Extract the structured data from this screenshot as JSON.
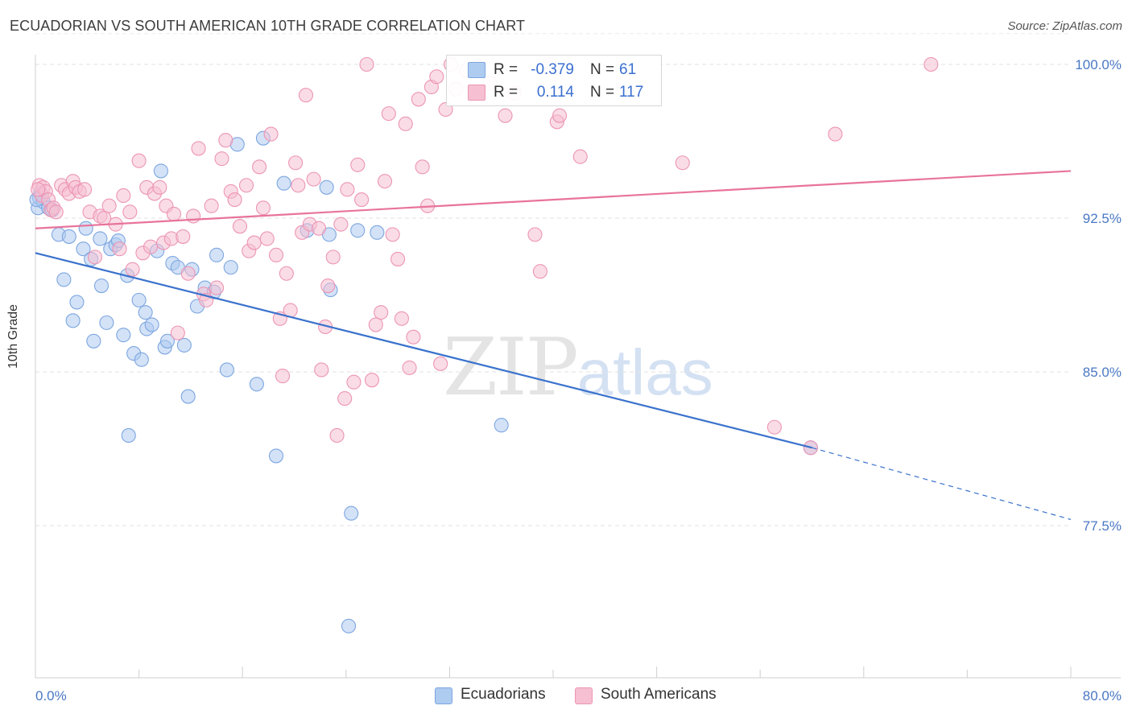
{
  "title": "ECUADORIAN VS SOUTH AMERICAN 10TH GRADE CORRELATION CHART",
  "source": "Source: ZipAtlas.com",
  "watermark": {
    "part1": "ZIP",
    "part2": "atlas"
  },
  "colors": {
    "blue": "#3a72cc",
    "pink": "#e8739b",
    "blue_fill": "#aecbf0",
    "pink_fill": "#f6bfd2"
  },
  "legend": {
    "rows": [
      {
        "r_label": "R =",
        "r_value": "-0.379",
        "n_label": "N =",
        "n_value": "61"
      },
      {
        "r_label": "R =",
        "r_value": "0.114",
        "n_label": "N =",
        "n_value": "117"
      }
    ]
  },
  "bottom_legend": [
    "Ecuadorians",
    "South Americans"
  ],
  "chart_data": {
    "type": "scatter",
    "title": "ECUADORIAN VS SOUTH AMERICAN 10TH GRADE CORRELATION CHART",
    "xlabel": "",
    "ylabel": "10th Grade",
    "xlim": [
      0,
      80
    ],
    "ylim": [
      71.0,
      101.5
    ],
    "x_tick_labels": [
      "0.0%",
      "80.0%"
    ],
    "y_ticks": [
      77.5,
      85.0,
      92.5,
      100.0
    ],
    "y_tick_labels": [
      "77.5%",
      "85.0%",
      "92.5%",
      "100.0%"
    ],
    "grid": true,
    "legend_position": "top-center",
    "series": [
      {
        "name": "Ecuadorians",
        "color": "#3a72cc",
        "r": -0.379,
        "n": 61,
        "trend": {
          "x0": 0,
          "y0": 90.8,
          "x1": 60.0,
          "y1": 81.3,
          "dashed_to_x": 80,
          "dashed_to_y": 77.8
        },
        "points": [
          [
            0.2,
            93.0
          ],
          [
            0.3,
            93.5
          ],
          [
            0.4,
            93.7
          ],
          [
            0.6,
            93.3
          ],
          [
            1.0,
            93.0
          ],
          [
            1.3,
            92.9
          ],
          [
            1.8,
            91.7
          ],
          [
            2.2,
            89.5
          ],
          [
            2.6,
            91.6
          ],
          [
            2.9,
            87.5
          ],
          [
            3.2,
            88.4
          ],
          [
            3.7,
            91.0
          ],
          [
            3.9,
            92.0
          ],
          [
            4.3,
            90.5
          ],
          [
            4.5,
            86.5
          ],
          [
            5.0,
            91.5
          ],
          [
            5.1,
            89.2
          ],
          [
            5.5,
            87.4
          ],
          [
            5.8,
            91.0
          ],
          [
            6.2,
            91.2
          ],
          [
            6.4,
            91.4
          ],
          [
            6.8,
            86.8
          ],
          [
            7.1,
            89.7
          ],
          [
            7.2,
            81.9
          ],
          [
            7.6,
            85.9
          ],
          [
            8.0,
            88.5
          ],
          [
            8.2,
            85.6
          ],
          [
            8.5,
            87.9
          ],
          [
            8.6,
            87.1
          ],
          [
            9.0,
            87.3
          ],
          [
            9.4,
            90.9
          ],
          [
            9.7,
            94.8
          ],
          [
            10.0,
            86.2
          ],
          [
            10.2,
            86.5
          ],
          [
            10.6,
            90.3
          ],
          [
            11.0,
            90.1
          ],
          [
            11.5,
            86.3
          ],
          [
            11.8,
            83.8
          ],
          [
            12.1,
            90.0
          ],
          [
            12.5,
            88.2
          ],
          [
            13.1,
            89.1
          ],
          [
            13.8,
            88.9
          ],
          [
            14.0,
            90.7
          ],
          [
            14.8,
            85.1
          ],
          [
            15.1,
            90.1
          ],
          [
            15.6,
            96.1
          ],
          [
            17.1,
            84.4
          ],
          [
            17.6,
            96.4
          ],
          [
            18.6,
            80.9
          ],
          [
            19.2,
            94.2
          ],
          [
            21.0,
            91.9
          ],
          [
            22.5,
            94.0
          ],
          [
            22.7,
            91.7
          ],
          [
            22.8,
            89.0
          ],
          [
            24.4,
            78.1
          ],
          [
            24.2,
            72.6
          ],
          [
            24.9,
            91.9
          ],
          [
            26.4,
            91.8
          ],
          [
            36.0,
            82.4
          ],
          [
            59.9,
            81.3
          ],
          [
            0.1,
            93.4
          ]
        ]
      },
      {
        "name": "South Americans",
        "color": "#e8739b",
        "r": 0.114,
        "n": 117,
        "trend": {
          "x0": 0,
          "y0": 92.0,
          "x1": 80,
          "y1": 94.8
        },
        "points": [
          [
            0.3,
            94.1
          ],
          [
            0.5,
            93.6
          ],
          [
            0.6,
            94.0
          ],
          [
            0.8,
            93.8
          ],
          [
            1.0,
            93.4
          ],
          [
            1.2,
            92.9
          ],
          [
            1.4,
            93.0
          ],
          [
            1.6,
            92.8
          ],
          [
            2.0,
            94.1
          ],
          [
            2.3,
            93.9
          ],
          [
            2.6,
            93.7
          ],
          [
            2.9,
            94.3
          ],
          [
            3.1,
            94.0
          ],
          [
            3.4,
            93.8
          ],
          [
            3.8,
            93.9
          ],
          [
            4.2,
            92.8
          ],
          [
            4.6,
            90.6
          ],
          [
            5.0,
            92.6
          ],
          [
            5.3,
            92.5
          ],
          [
            5.7,
            93.1
          ],
          [
            6.2,
            92.2
          ],
          [
            6.5,
            91.0
          ],
          [
            6.8,
            93.6
          ],
          [
            7.3,
            92.8
          ],
          [
            7.5,
            90.0
          ],
          [
            8.0,
            95.3
          ],
          [
            8.3,
            90.8
          ],
          [
            8.6,
            94.0
          ],
          [
            8.9,
            91.1
          ],
          [
            9.2,
            93.7
          ],
          [
            9.6,
            94.0
          ],
          [
            9.9,
            91.3
          ],
          [
            10.1,
            93.1
          ],
          [
            10.5,
            91.5
          ],
          [
            10.7,
            92.7
          ],
          [
            11.0,
            86.9
          ],
          [
            11.4,
            91.6
          ],
          [
            11.8,
            89.8
          ],
          [
            12.2,
            92.6
          ],
          [
            12.6,
            95.9
          ],
          [
            13.0,
            88.8
          ],
          [
            13.2,
            88.5
          ],
          [
            13.6,
            93.1
          ],
          [
            14.0,
            89.1
          ],
          [
            14.4,
            95.4
          ],
          [
            14.7,
            96.3
          ],
          [
            15.1,
            93.8
          ],
          [
            15.4,
            93.4
          ],
          [
            15.8,
            92.1
          ],
          [
            16.3,
            94.1
          ],
          [
            16.5,
            90.9
          ],
          [
            16.9,
            91.3
          ],
          [
            17.3,
            95.0
          ],
          [
            17.6,
            93.0
          ],
          [
            17.9,
            91.5
          ],
          [
            18.2,
            96.6
          ],
          [
            18.6,
            90.7
          ],
          [
            18.9,
            87.6
          ],
          [
            19.1,
            84.8
          ],
          [
            19.4,
            89.8
          ],
          [
            19.7,
            88.0
          ],
          [
            20.1,
            95.2
          ],
          [
            20.3,
            94.1
          ],
          [
            20.6,
            91.8
          ],
          [
            20.9,
            98.5
          ],
          [
            21.2,
            92.2
          ],
          [
            21.5,
            94.4
          ],
          [
            21.9,
            92.0
          ],
          [
            22.1,
            85.1
          ],
          [
            22.4,
            87.2
          ],
          [
            22.6,
            89.2
          ],
          [
            23.0,
            90.6
          ],
          [
            23.3,
            81.9
          ],
          [
            23.6,
            92.2
          ],
          [
            23.9,
            83.7
          ],
          [
            24.1,
            93.9
          ],
          [
            24.6,
            84.5
          ],
          [
            24.9,
            95.1
          ],
          [
            25.2,
            93.4
          ],
          [
            25.6,
            100.0
          ],
          [
            26.0,
            84.6
          ],
          [
            26.3,
            87.3
          ],
          [
            26.7,
            87.9
          ],
          [
            27.0,
            94.3
          ],
          [
            27.3,
            97.6
          ],
          [
            27.6,
            91.7
          ],
          [
            28.0,
            90.5
          ],
          [
            28.3,
            87.6
          ],
          [
            28.6,
            97.1
          ],
          [
            28.9,
            85.2
          ],
          [
            29.2,
            86.7
          ],
          [
            29.6,
            98.3
          ],
          [
            29.9,
            95.0
          ],
          [
            30.3,
            93.1
          ],
          [
            30.6,
            98.9
          ],
          [
            31.0,
            99.4
          ],
          [
            31.3,
            85.4
          ],
          [
            31.7,
            97.8
          ],
          [
            32.1,
            100.0
          ],
          [
            32.5,
            98.8
          ],
          [
            33.3,
            99.7
          ],
          [
            34.2,
            99.9
          ],
          [
            35.1,
            99.1
          ],
          [
            36.3,
            97.5
          ],
          [
            37.0,
            98.6
          ],
          [
            38.6,
            91.7
          ],
          [
            39.0,
            89.9
          ],
          [
            39.7,
            100.0
          ],
          [
            40.3,
            97.2
          ],
          [
            40.5,
            97.5
          ],
          [
            42.1,
            95.5
          ],
          [
            50.0,
            95.2
          ],
          [
            57.1,
            82.3
          ],
          [
            59.9,
            81.3
          ],
          [
            61.8,
            96.6
          ],
          [
            69.2,
            100.0
          ],
          [
            0.2,
            93.9
          ]
        ]
      }
    ]
  }
}
